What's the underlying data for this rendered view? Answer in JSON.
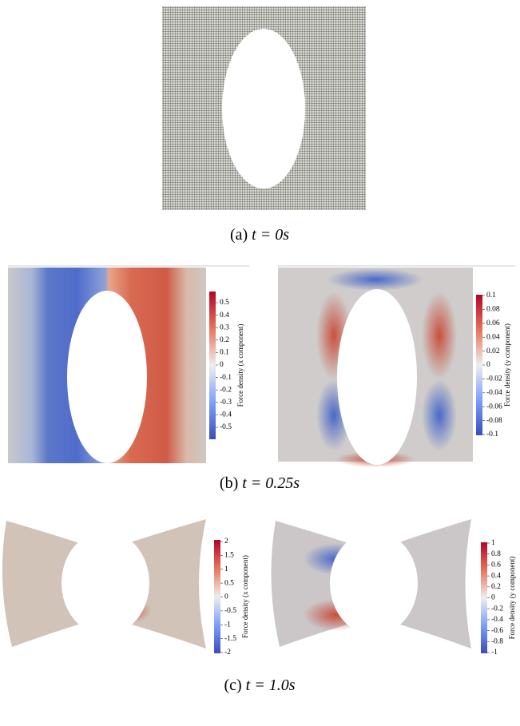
{
  "panels": [
    {
      "label": "(a)",
      "equation": "t = 0s"
    },
    {
      "label": "(b)",
      "equation": "t = 0.25s"
    },
    {
      "label": "(c)",
      "equation": "t = 1.0s"
    }
  ],
  "colorbars": [
    {
      "title": "Force density (x component)",
      "ticks": [
        "0.5",
        "0.4",
        "0.3",
        "0.2",
        "0.1",
        "0",
        "-0.1",
        "-0.2",
        "-0.3",
        "-0.4",
        "-0.5"
      ]
    },
    {
      "title": "Force density (y component)",
      "ticks": [
        "0.1",
        "0.08",
        "0.06",
        "0.04",
        "0.02",
        "0",
        "-0.02",
        "-0.04",
        "-0.06",
        "-0.08",
        "-0.1"
      ]
    },
    {
      "title": "Force density (x component)",
      "ticks": [
        "2",
        "1.5",
        "1",
        "0.5",
        "0",
        "-0.5",
        "-1",
        "-1.5",
        "-2"
      ]
    },
    {
      "title": "Force density (y component)",
      "ticks": [
        "1",
        "0.8",
        "0.6",
        "0.4",
        "0.2",
        "0",
        "-0.2",
        "-0.4",
        "-0.6",
        "-0.8",
        "-1"
      ]
    }
  ]
}
